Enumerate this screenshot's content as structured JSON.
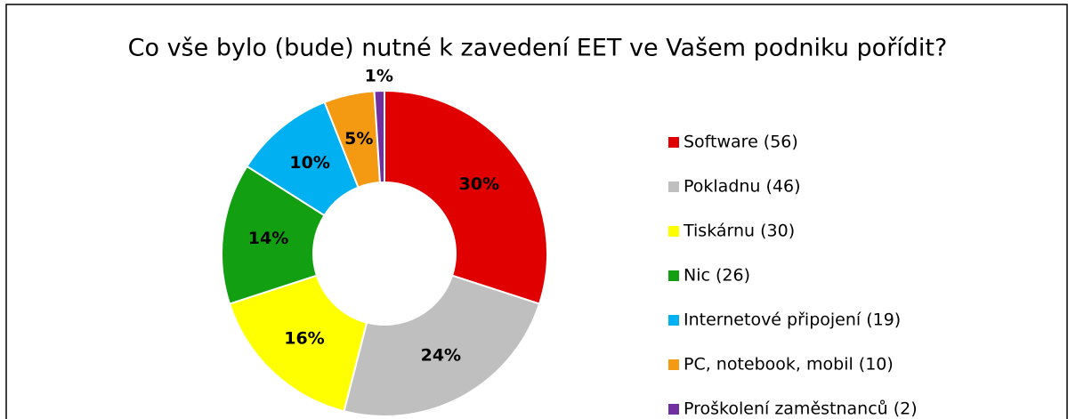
{
  "chart_data": {
    "type": "donut",
    "title": "Co vše bylo (bude) nutné k zavedení EET ve Vašem podniku pořídit?",
    "categories": [
      "Software (56)",
      "Pokladnu (46)",
      "Tiskárnu (30)",
      "Nic (26)",
      "Internetové připojení (19)",
      "PC, notebook, mobil (10)",
      "Proškolení zaměstnanců (2)"
    ],
    "values": [
      30,
      24,
      16,
      14,
      10,
      5,
      1
    ],
    "value_labels": [
      "30%",
      "24%",
      "16%",
      "14%",
      "10%",
      "5%",
      "1%"
    ],
    "colors": [
      "#e00000",
      "#bfbfbf",
      "#ffff00",
      "#12a012",
      "#00b0f0",
      "#f39a12",
      "#7030a0"
    ],
    "legend": "right"
  }
}
